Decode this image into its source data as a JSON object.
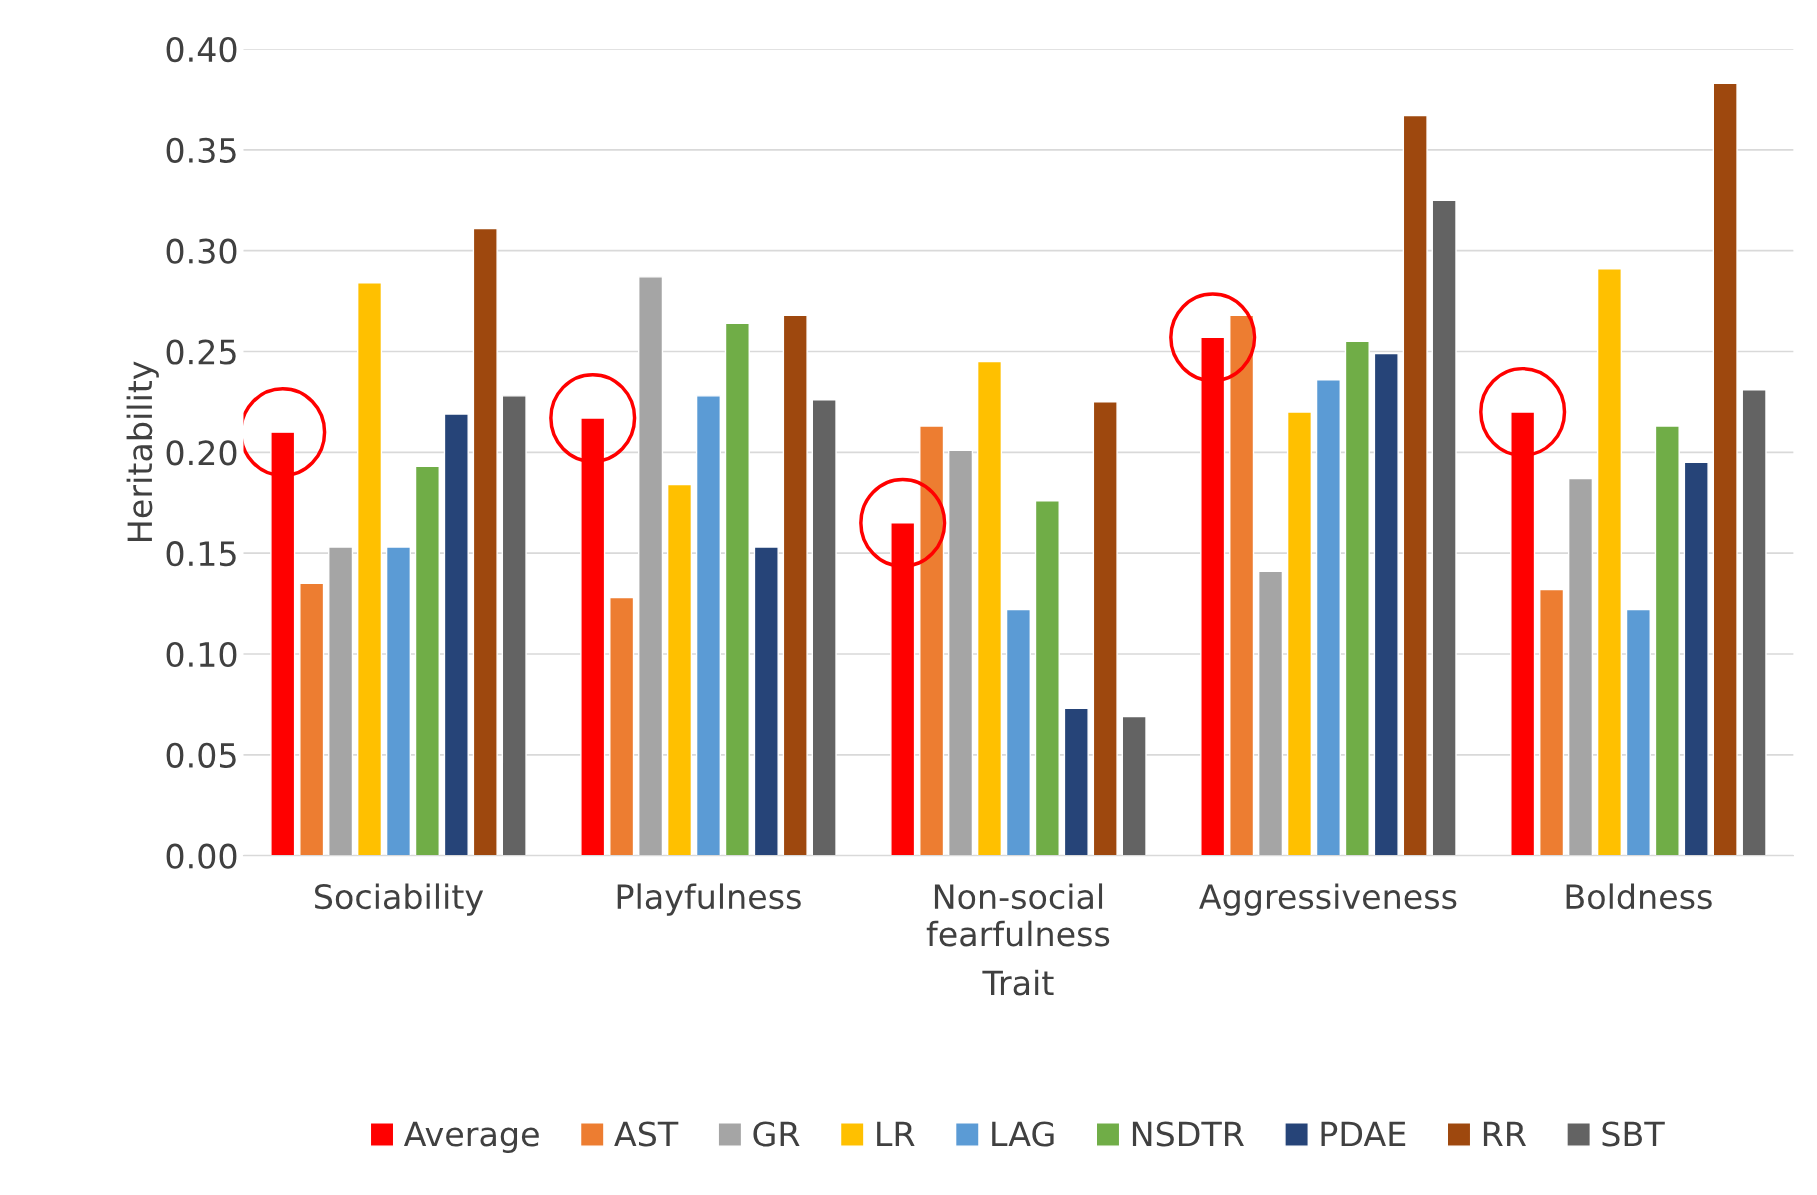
{
  "chart_data": {
    "type": "bar",
    "xlabel": "Trait",
    "ylabel": "Heritability",
    "categories": [
      "Sociability",
      "Playfulness",
      "Non-social\nfearfulness",
      "Aggressiveness",
      "Boldness"
    ],
    "series": [
      {
        "name": "Average",
        "color": "#ff0000",
        "values": [
          0.21,
          0.217,
          0.165,
          0.257,
          0.22
        ]
      },
      {
        "name": "AST",
        "color": "#ed7d31",
        "values": [
          0.135,
          0.128,
          0.213,
          0.268,
          0.132
        ]
      },
      {
        "name": "GR",
        "color": "#a5a5a5",
        "values": [
          0.153,
          0.287,
          0.201,
          0.141,
          0.187
        ]
      },
      {
        "name": "LR",
        "color": "#ffc000",
        "values": [
          0.284,
          0.184,
          0.245,
          0.22,
          0.291
        ]
      },
      {
        "name": "LAG",
        "color": "#5b9bd5",
        "values": [
          0.153,
          0.228,
          0.122,
          0.236,
          0.122
        ]
      },
      {
        "name": "NSDTR",
        "color": "#70ad47",
        "values": [
          0.193,
          0.264,
          0.176,
          0.255,
          0.213
        ]
      },
      {
        "name": "PDAE",
        "color": "#264478",
        "values": [
          0.219,
          0.153,
          0.073,
          0.249,
          0.195
        ]
      },
      {
        "name": "RR",
        "color": "#9e480e",
        "values": [
          0.311,
          0.268,
          0.225,
          0.367,
          0.383
        ]
      },
      {
        "name": "SBT",
        "color": "#636363",
        "values": [
          0.228,
          0.226,
          0.069,
          0.325,
          0.231
        ]
      }
    ],
    "ylim": [
      0,
      0.4
    ],
    "yticks": [
      {
        "value": 0,
        "label": "0.00"
      },
      {
        "value": 0.05,
        "label": "0.05"
      },
      {
        "value": 0.1,
        "label": "0.10"
      },
      {
        "value": 0.15,
        "label": "0.15"
      },
      {
        "value": 0.2,
        "label": "0.20"
      },
      {
        "value": 0.25,
        "label": "0.25"
      },
      {
        "value": 0.3,
        "label": "0.30"
      },
      {
        "value": 0.35,
        "label": "0.35"
      },
      {
        "value": 0.4,
        "label": "0.40"
      }
    ],
    "grid": "y",
    "legend": "bottom"
  }
}
